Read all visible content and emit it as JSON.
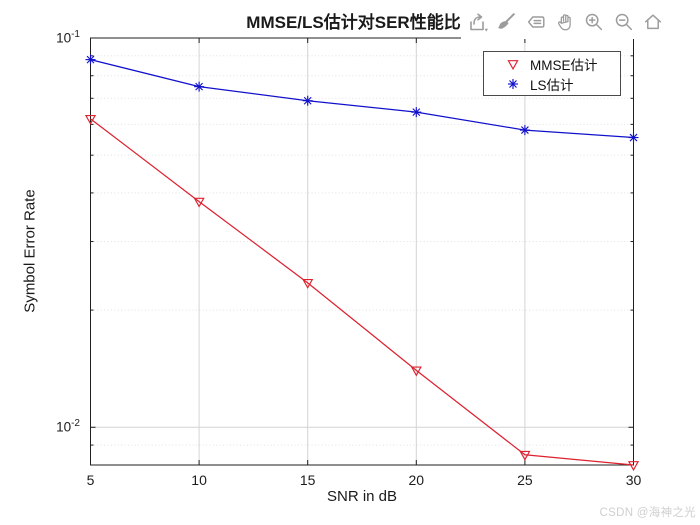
{
  "watermark": "CSDN @海神之光",
  "toolbar": {
    "icons": [
      "export-icon",
      "brush-icon",
      "datatips-icon",
      "pan-icon",
      "zoom-in-icon",
      "zoom-out-icon",
      "restore-view-icon"
    ]
  },
  "chart_data": {
    "type": "line",
    "title": "MMSE/LS估计对SER性能比较",
    "xlabel": "SNR in dB",
    "ylabel": "Symbol Error Rate",
    "x": [
      5,
      10,
      15,
      20,
      25,
      30
    ],
    "series": [
      {
        "name": "MMSE估计",
        "color": "#dd2230",
        "marker": "triangle-down",
        "values": [
          0.062,
          0.038,
          0.0235,
          0.014,
          0.0085,
          0.008
        ]
      },
      {
        "name": "LS估计",
        "color": "#1111cc",
        "marker": "asterisk",
        "values": [
          0.088,
          0.075,
          0.069,
          0.0645,
          0.058,
          0.0555
        ]
      }
    ],
    "xscale": "linear",
    "yscale": "log",
    "xlim": [
      5,
      30
    ],
    "ylim": [
      0.008,
      0.1
    ],
    "x_ticks": [
      5,
      10,
      15,
      20,
      25,
      30
    ],
    "y_ticks": [
      {
        "value": 0.1,
        "base": "10",
        "exp": "-1"
      },
      {
        "value": 0.01,
        "base": "10",
        "exp": "-2"
      }
    ],
    "y_minor_ticks": [
      0.009,
      0.02,
      0.03,
      0.04,
      0.05,
      0.06,
      0.07,
      0.08,
      0.09
    ],
    "grid": true,
    "legend_position": "northeast",
    "colors": {
      "axis": "#1f1f1f",
      "major_grid": "#d4d4d4",
      "minor_grid": "#e2e2e2",
      "tick_label": "#1c1c1c"
    }
  }
}
